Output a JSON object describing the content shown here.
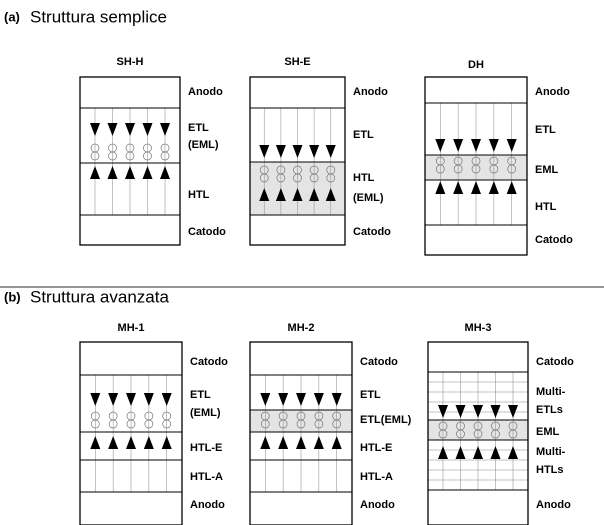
{
  "sections": [
    {
      "letter": "(a)",
      "title": "Struttura semplice",
      "panels": [
        {
          "name": "SH-H",
          "labels": [
            "Anodo",
            "ETL",
            "(EML)",
            "HTL",
            "Catodo"
          ]
        },
        {
          "name": "SH-E",
          "labels": [
            "Anodo",
            "ETL",
            "HTL",
            "(EML)",
            "Catodo"
          ]
        },
        {
          "name": "DH",
          "labels": [
            "Anodo",
            "ETL",
            "EML",
            "HTL",
            "Catodo"
          ]
        }
      ]
    },
    {
      "letter": "(b)",
      "title": "Struttura avanzata",
      "panels": [
        {
          "name": "MH-1",
          "labels": [
            "Catodo",
            "ETL",
            "(EML)",
            "HTL-E",
            "HTL-A",
            "Anodo"
          ]
        },
        {
          "name": "MH-2",
          "labels": [
            "Catodo",
            "ETL",
            "ETL(EML)",
            "HTL-E",
            "HTL-A",
            "Anodo"
          ]
        },
        {
          "name": "MH-3",
          "labels": [
            "Catodo",
            "Multi-",
            "ETLs",
            "EML",
            "Multi-",
            "HTLs",
            "Anodo"
          ]
        }
      ]
    }
  ]
}
